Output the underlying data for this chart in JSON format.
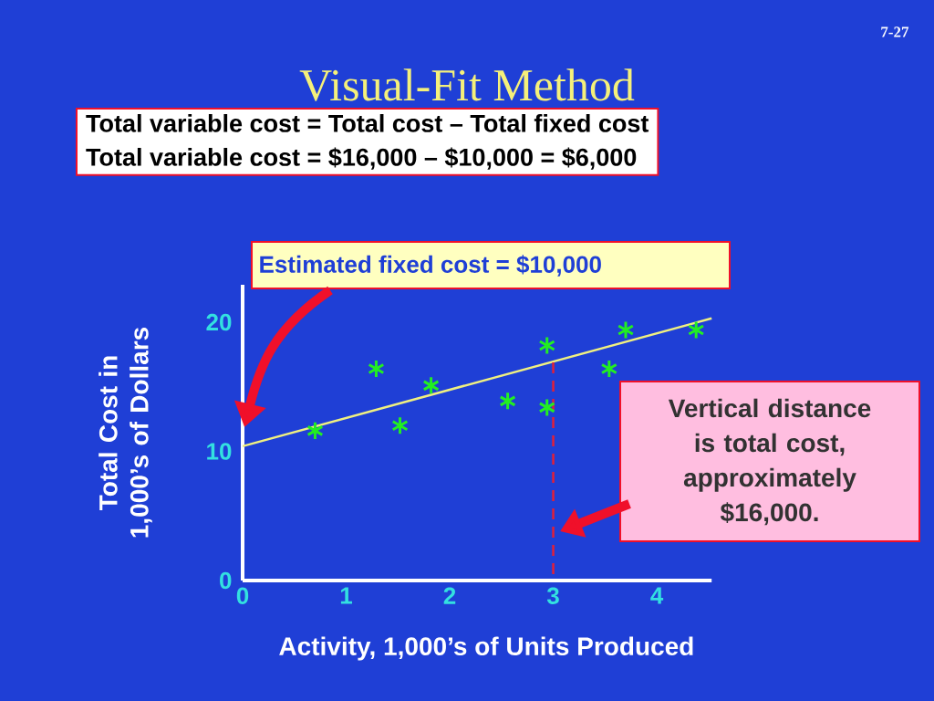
{
  "chart_data": {
    "type": "scatter",
    "title": "Visual-Fit Method",
    "xlabel": "Activity, 1,000’s of Units Produced",
    "ylabel": "Total Cost in 1,000’s of Dollars",
    "marker": "cross",
    "xlim": [
      0,
      4.53
    ],
    "ylim": [
      0,
      22.9
    ],
    "xticks": [
      0,
      1,
      2,
      3,
      4
    ],
    "yticks": [
      0,
      10,
      20
    ],
    "series": [
      {
        "color": "#22ee22",
        "x": [
          0.7,
          1.29,
          1.52,
          1.82,
          2.56,
          2.94,
          2.94,
          3.54,
          3.7,
          4.38
        ],
        "values": [
          11.6,
          16.4,
          12.0,
          15.1,
          13.9,
          18.2,
          13.4,
          16.4,
          19.4,
          19.4
        ]
      },
      {
        "type": "line",
        "marker": "none",
        "color": "#f0f080",
        "x": [
          0,
          4.53
        ],
        "values": [
          10.4,
          20.3
        ]
      },
      {
        "type": "line",
        "marker": "none",
        "color": "#e0203a",
        "line_style": "dashed",
        "x": [
          3,
          3
        ],
        "values": [
          0,
          16.9
        ]
      }
    ],
    "annotations": [
      "7-27",
      "Total variable cost = Total cost – Total fixed cost",
      "Total variable cost = $16,000 – $10,000 = $6,000",
      "Estimated fixed cost = $10,000",
      "Vertical distance is total cost, approximately $16,000."
    ]
  }
}
